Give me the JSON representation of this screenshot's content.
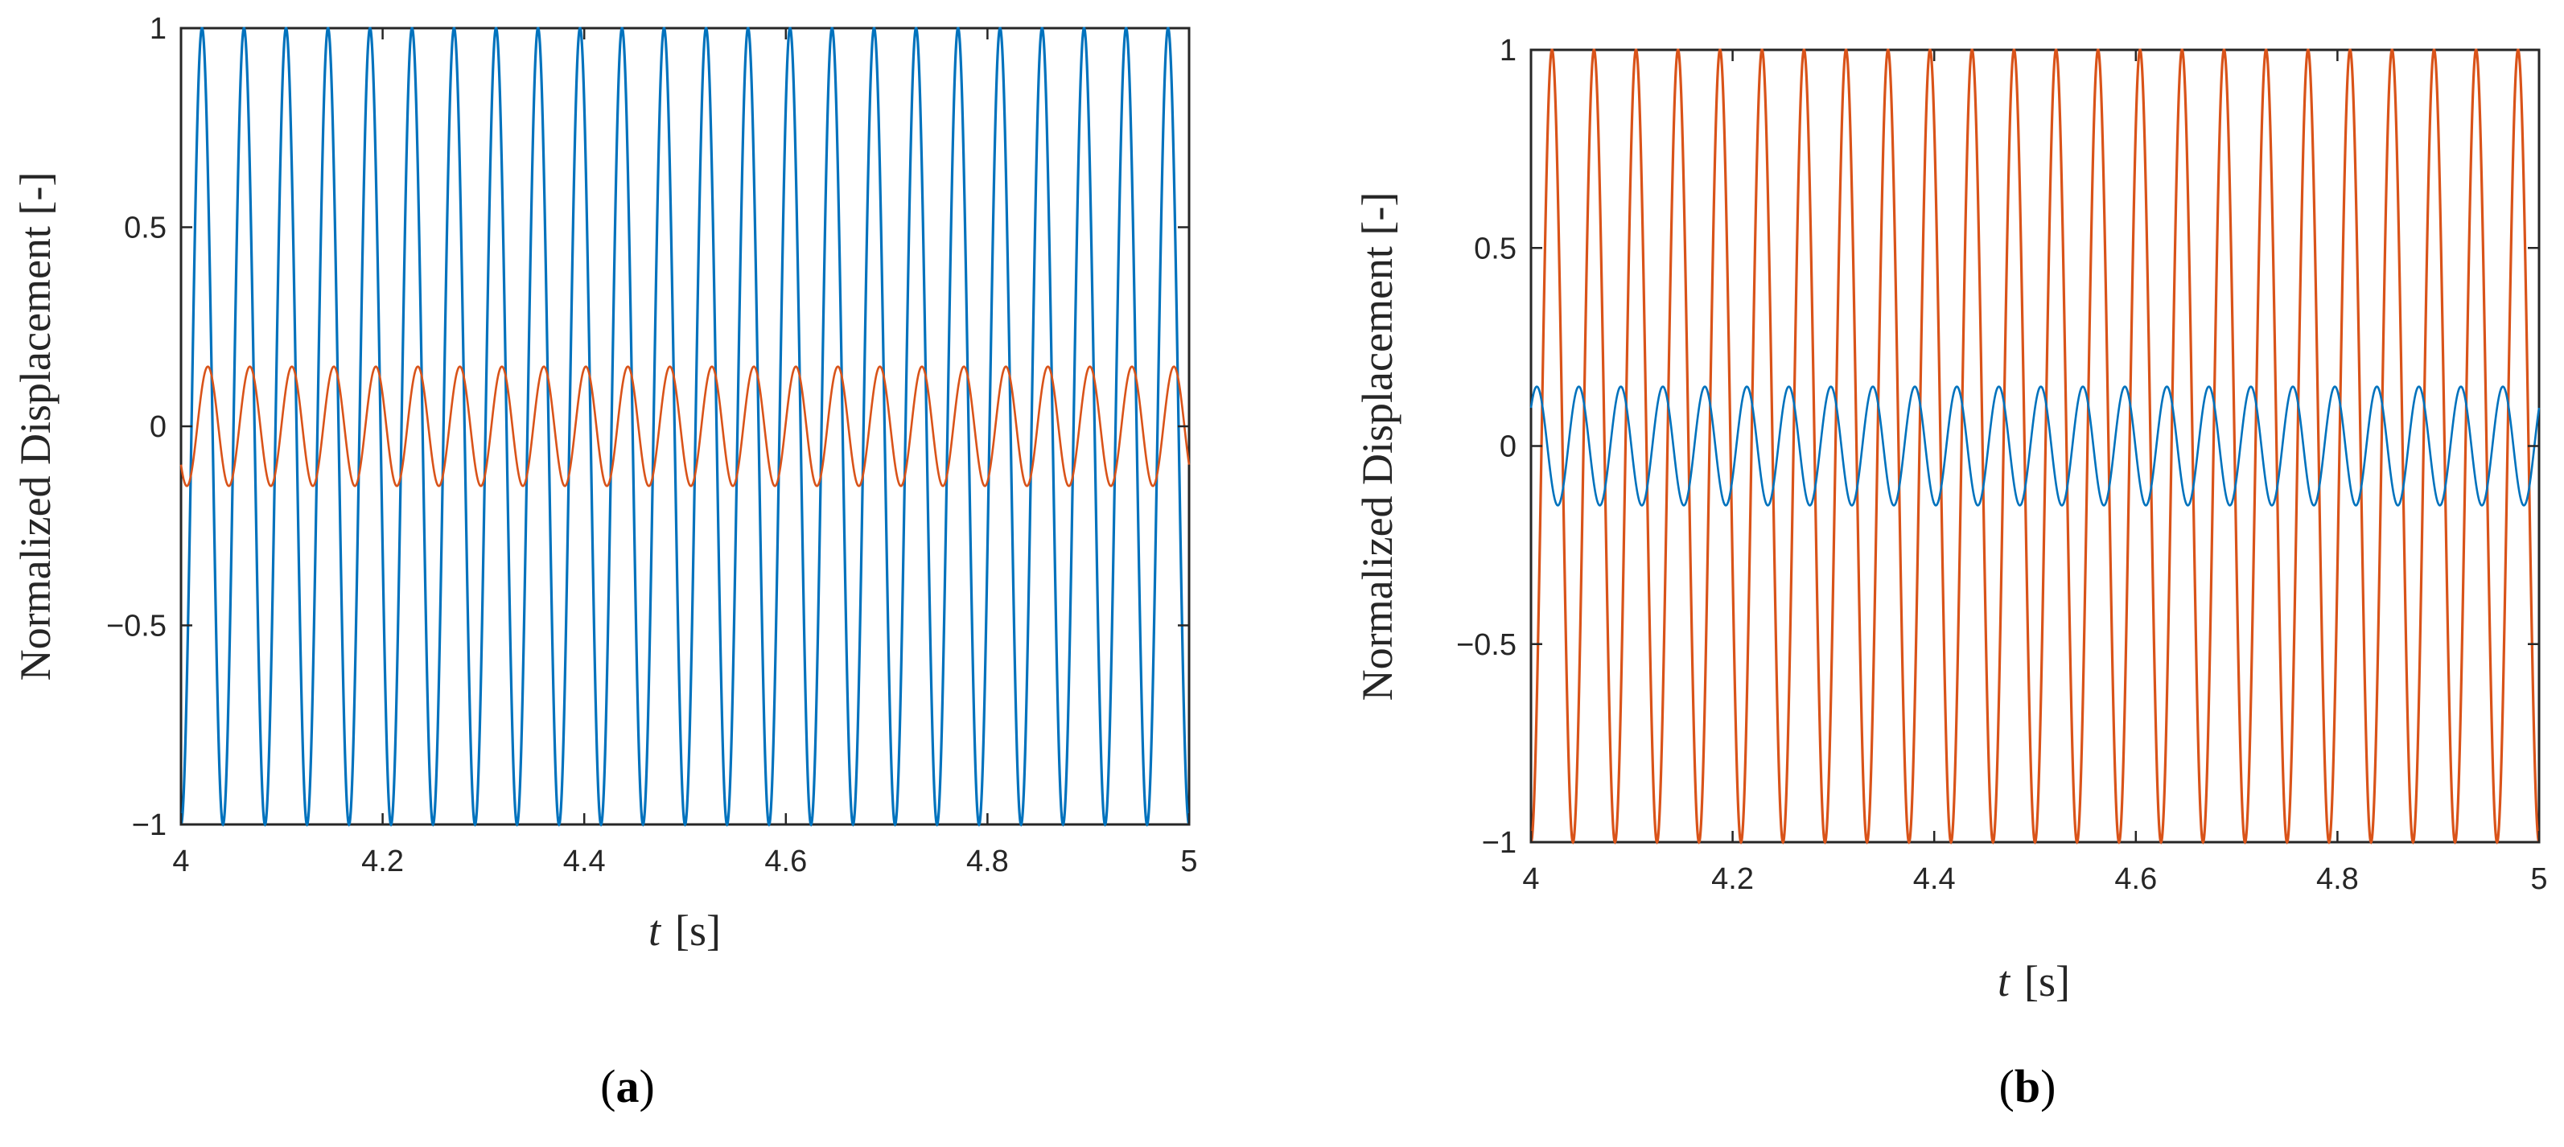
{
  "chart_data": [
    {
      "type": "line",
      "panel_label": "a",
      "xlabel_var": "t",
      "xlabel_unit": "[s]",
      "ylabel": "Normalized Displacement [-]",
      "xlim": [
        4,
        5
      ],
      "ylim": [
        -1,
        1
      ],
      "xticks": [
        "4",
        "4.2",
        "4.4",
        "4.6",
        "4.8",
        "5"
      ],
      "yticks": [
        "−1",
        "−0.5",
        "0",
        "0.5",
        "1"
      ],
      "grid": false,
      "series": [
        {
          "color": "#0072BD",
          "amplitude": 1.0,
          "frequency_hz": 24,
          "phase_deg": 270,
          "t_range": [
            4,
            5
          ]
        },
        {
          "color": "#D95319",
          "amplitude": 0.15,
          "frequency_hz": 24,
          "phase_deg": 220,
          "t_range": [
            4,
            5
          ]
        }
      ]
    },
    {
      "type": "line",
      "panel_label": "b",
      "xlabel_var": "t",
      "xlabel_unit": "[s]",
      "ylabel": "Normalized Displacement [-]",
      "xlim": [
        4,
        5
      ],
      "ylim": [
        -1,
        1
      ],
      "xticks": [
        "4",
        "4.2",
        "4.4",
        "4.6",
        "4.8",
        "5"
      ],
      "yticks": [
        "−1",
        "−0.5",
        "0",
        "0.5",
        "1"
      ],
      "grid": false,
      "series": [
        {
          "color": "#D95319",
          "amplitude": 1.0,
          "frequency_hz": 24,
          "phase_deg": 270,
          "t_range": [
            4,
            5
          ]
        },
        {
          "color": "#0072BD",
          "amplitude": 0.15,
          "frequency_hz": 24,
          "phase_deg": 40,
          "t_range": [
            4,
            5
          ]
        }
      ]
    }
  ]
}
